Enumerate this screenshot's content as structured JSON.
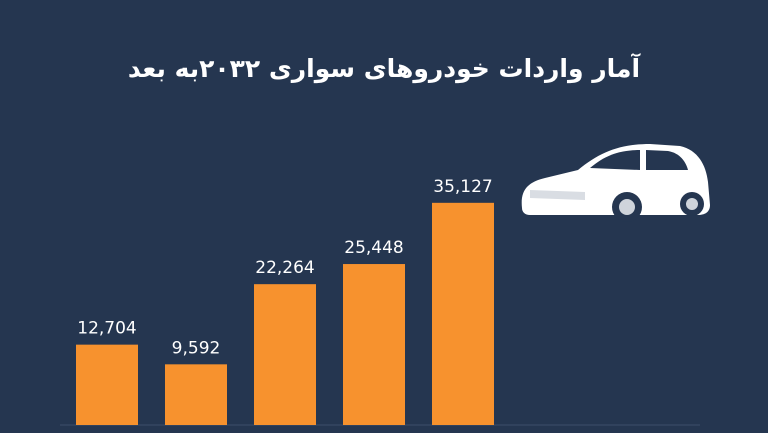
{
  "chart_data": {
    "type": "bar",
    "title": "آمار واردات خودروهای سواری ۲۰۳۲به بعد",
    "categories": [
      null,
      null,
      null,
      null,
      null
    ],
    "values": [
      12704,
      9592,
      22264,
      25448,
      35127
    ],
    "value_labels": [
      "12,704",
      "9,592",
      "22,264",
      "25,448",
      "35,127"
    ],
    "color": "#f7922e",
    "ylim": [
      0,
      40000
    ]
  }
}
